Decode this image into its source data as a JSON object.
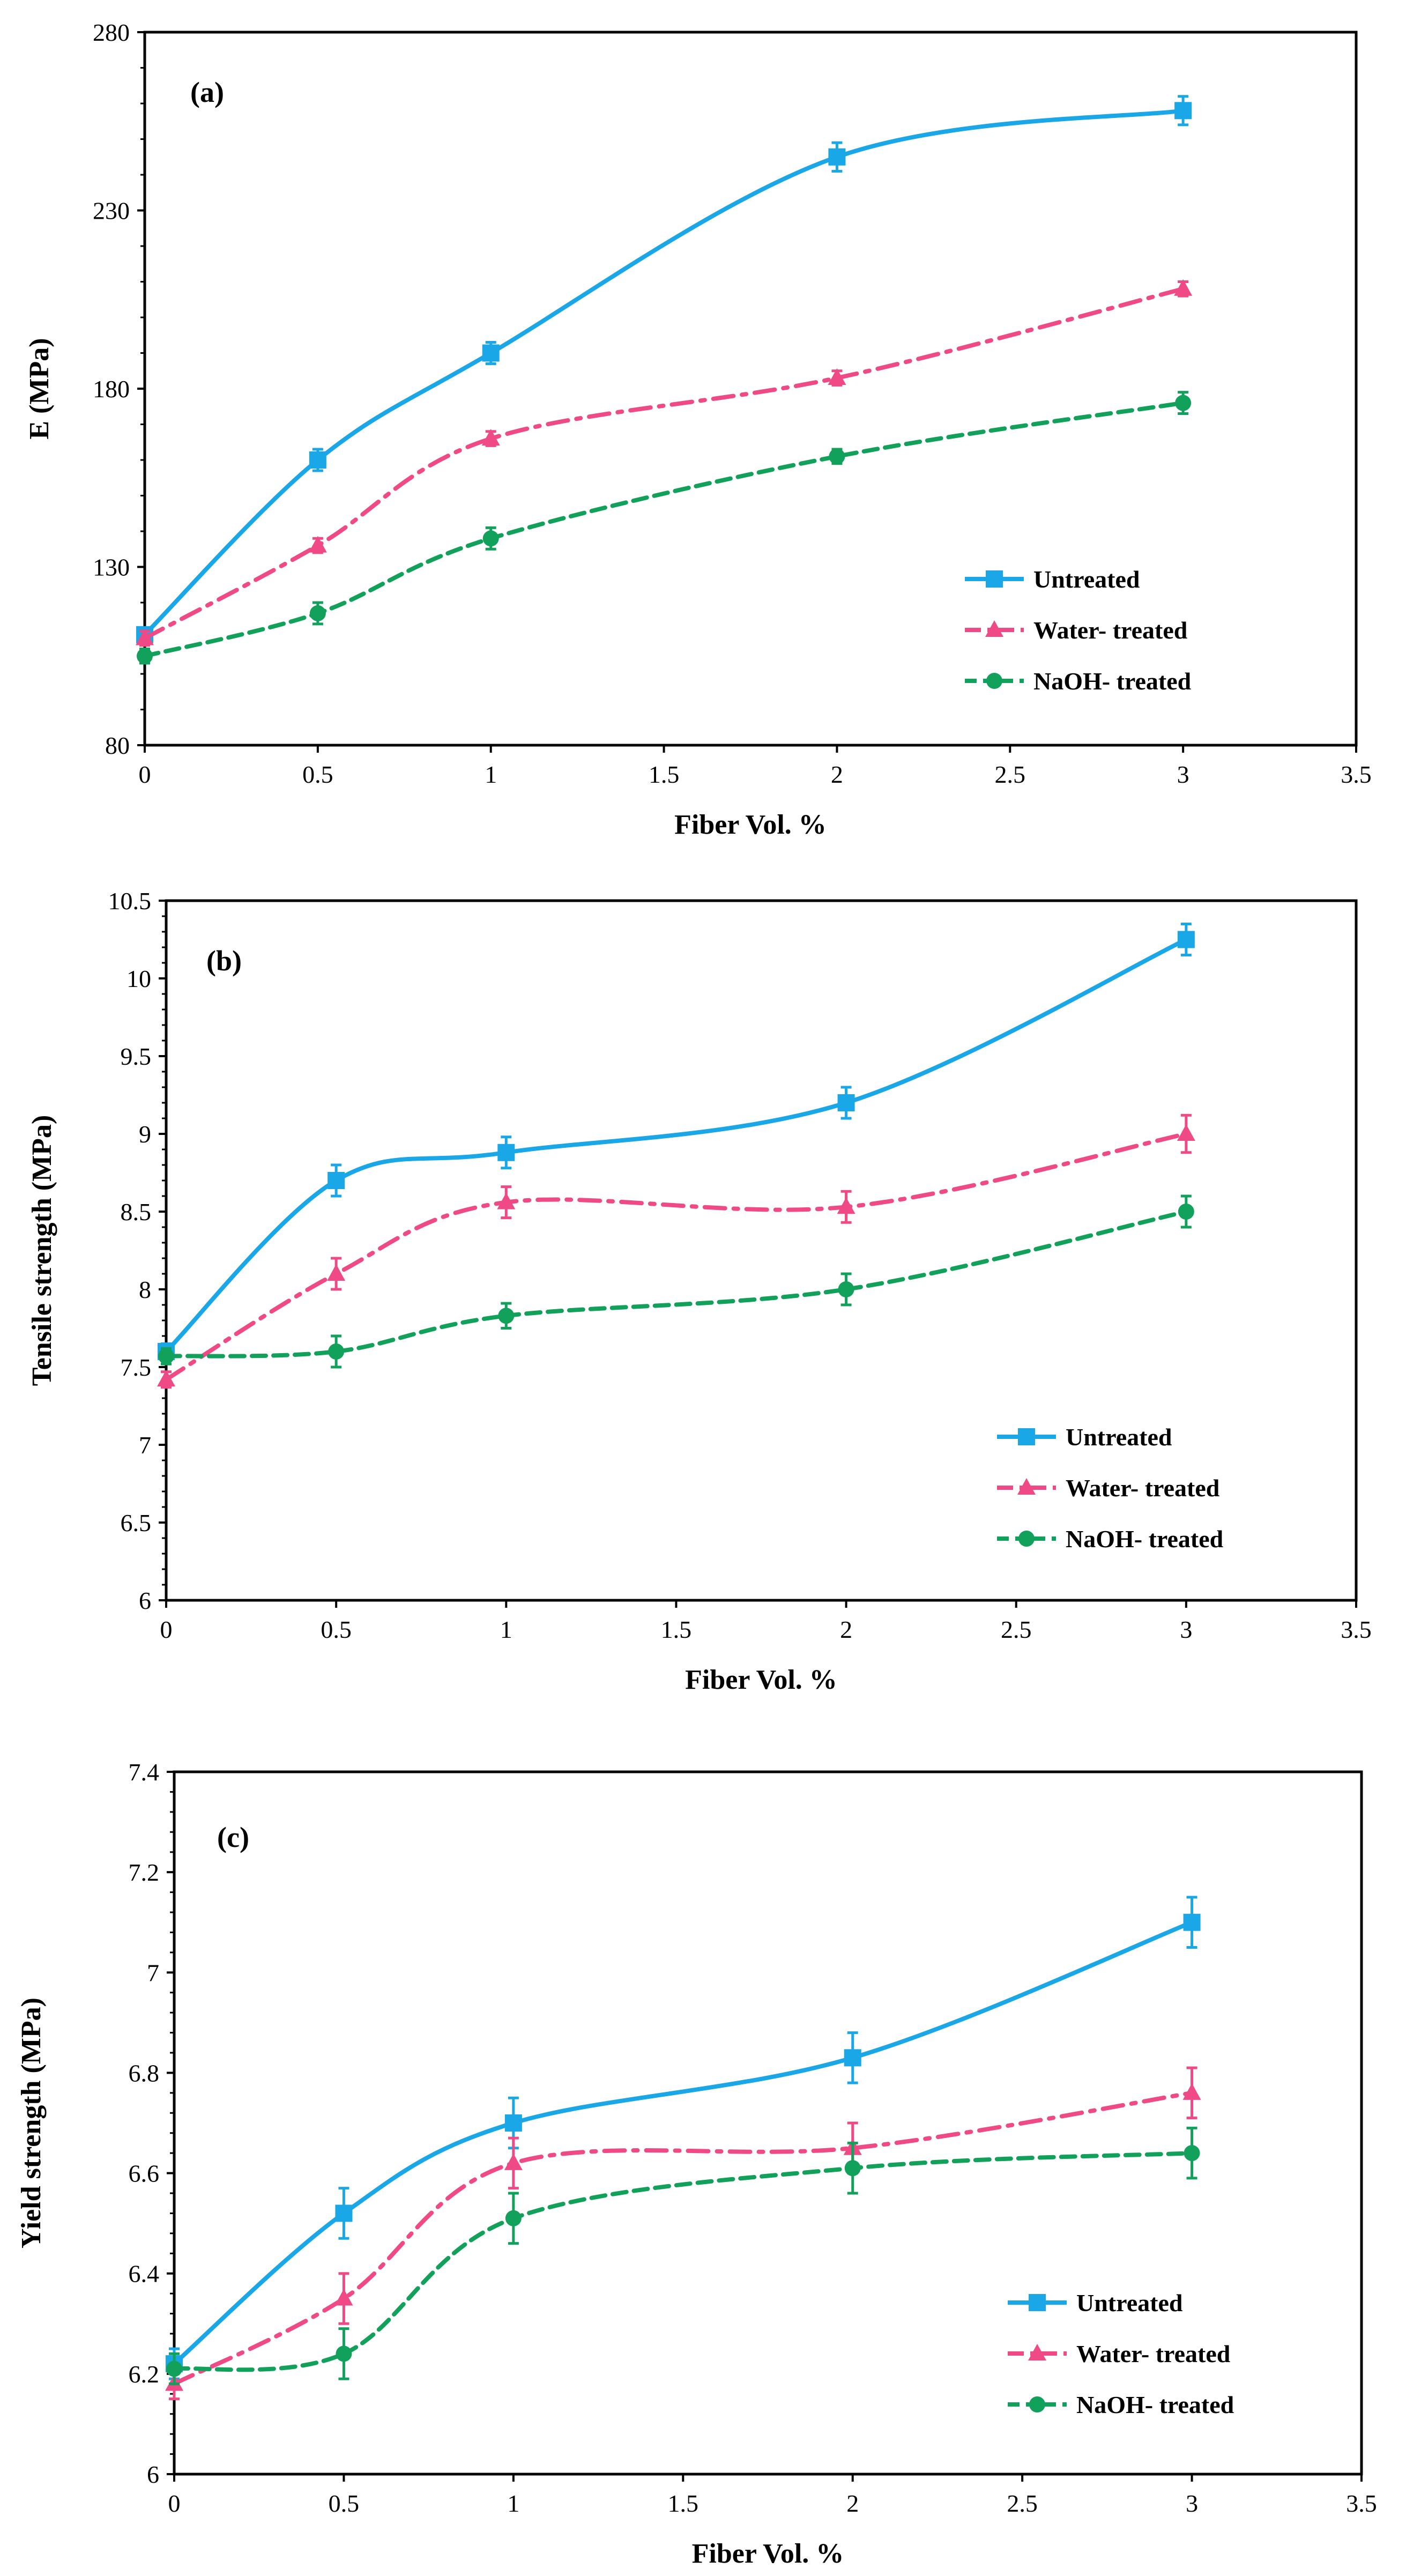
{
  "chart_data": [
    {
      "type": "line",
      "panel_label": "(a)",
      "title": "",
      "xlabel": "Fiber Vol. %",
      "ylabel": "E (MPa)",
      "xlim": [
        0,
        3.5
      ],
      "ylim": [
        80,
        280
      ],
      "x_ticks": [
        0,
        0.5,
        1,
        1.5,
        2,
        2.5,
        3,
        3.5
      ],
      "x_tick_labels": [
        "0",
        "0.5",
        "1",
        "1.5",
        "2",
        "2.5",
        "3",
        "3.5"
      ],
      "y_ticks": [
        80,
        130,
        180,
        230,
        280
      ],
      "y_tick_labels": [
        "80",
        "130",
        "180",
        "230",
        "280"
      ],
      "x": [
        0,
        0.5,
        1,
        2,
        3
      ],
      "legend_position": "bottom-right",
      "series": [
        {
          "name": "Untreated",
          "color": "#1aa7e8",
          "marker": "square",
          "line": "solid",
          "values": [
            111,
            160,
            190,
            245,
            258
          ],
          "errors": [
            2,
            3,
            3,
            4,
            4
          ]
        },
        {
          "name": "Water- treated",
          "color": "#ef4a86",
          "marker": "triangle",
          "line": "dashdot",
          "values": [
            110,
            136,
            166,
            183,
            208
          ],
          "errors": [
            2,
            2,
            2,
            2,
            2
          ]
        },
        {
          "name": "NaOH- treated",
          "color": "#12a15a",
          "marker": "circle",
          "line": "dashed",
          "values": [
            105,
            117,
            138,
            161,
            176
          ],
          "errors": [
            2,
            3,
            3,
            2,
            3
          ]
        }
      ]
    },
    {
      "type": "line",
      "panel_label": "(b)",
      "title": "",
      "xlabel": "Fiber Vol. %",
      "ylabel": "Tensile strength (MPa)",
      "xlim": [
        0,
        3.5
      ],
      "ylim": [
        6,
        10.5
      ],
      "x_ticks": [
        0,
        0.5,
        1,
        1.5,
        2,
        2.5,
        3,
        3.5
      ],
      "x_tick_labels": [
        "0",
        "0.5",
        "1",
        "1.5",
        "2",
        "2.5",
        "3",
        "3.5"
      ],
      "y_ticks": [
        6,
        6.5,
        7,
        7.5,
        8,
        8.5,
        9,
        9.5,
        10,
        10.5
      ],
      "y_tick_labels": [
        "6",
        "6.5",
        "7",
        "7.5",
        "8",
        "8.5",
        "9",
        "9.5",
        "10",
        "10.5"
      ],
      "x": [
        0,
        0.5,
        1,
        2,
        3
      ],
      "legend_position": "bottom-right",
      "series": [
        {
          "name": "Untreated",
          "color": "#1aa7e8",
          "marker": "square",
          "line": "solid",
          "values": [
            7.6,
            8.7,
            8.88,
            9.2,
            10.25
          ],
          "errors": [
            0.05,
            0.1,
            0.1,
            0.1,
            0.1
          ]
        },
        {
          "name": "Water- treated",
          "color": "#ef4a86",
          "marker": "triangle",
          "line": "dashdot",
          "values": [
            7.42,
            8.1,
            8.56,
            8.53,
            9.0
          ],
          "errors": [
            0.05,
            0.1,
            0.1,
            0.1,
            0.12
          ]
        },
        {
          "name": "NaOH- treated",
          "color": "#12a15a",
          "marker": "circle",
          "line": "dashed",
          "values": [
            7.57,
            7.6,
            7.83,
            8.0,
            8.5
          ],
          "errors": [
            0.05,
            0.1,
            0.08,
            0.1,
            0.1
          ]
        }
      ]
    },
    {
      "type": "line",
      "panel_label": "(c)",
      "title": "",
      "xlabel": "Fiber Vol. %",
      "ylabel": "Yield strength (MPa)",
      "xlim": [
        0,
        3.5
      ],
      "ylim": [
        6,
        7.4
      ],
      "x_ticks": [
        0,
        0.5,
        1,
        1.5,
        2,
        2.5,
        3,
        3.5
      ],
      "x_tick_labels": [
        "0",
        "0.5",
        "1",
        "1.5",
        "2",
        "2.5",
        "3",
        "3.5"
      ],
      "y_ticks": [
        6,
        6.2,
        6.4,
        6.6,
        6.8,
        7,
        7.2,
        7.4
      ],
      "y_tick_labels": [
        "6",
        "6.2",
        "6.4",
        "6.6",
        "6.8",
        "7",
        "7.2",
        "7.4"
      ],
      "x": [
        0,
        0.5,
        1,
        2,
        3
      ],
      "legend_position": "bottom-right",
      "series": [
        {
          "name": "Untreated",
          "color": "#1aa7e8",
          "marker": "square",
          "line": "solid",
          "values": [
            6.22,
            6.52,
            6.7,
            6.83,
            7.1
          ],
          "errors": [
            0.03,
            0.05,
            0.05,
            0.05,
            0.05
          ]
        },
        {
          "name": "Water- treated",
          "color": "#ef4a86",
          "marker": "triangle",
          "line": "dashdot",
          "values": [
            6.18,
            6.35,
            6.62,
            6.65,
            6.76
          ],
          "errors": [
            0.03,
            0.05,
            0.05,
            0.05,
            0.05
          ]
        },
        {
          "name": "NaOH- treated",
          "color": "#12a15a",
          "marker": "circle",
          "line": "dashed",
          "values": [
            6.21,
            6.24,
            6.51,
            6.61,
            6.64
          ],
          "errors": [
            0.03,
            0.05,
            0.05,
            0.05,
            0.05
          ]
        }
      ]
    }
  ]
}
